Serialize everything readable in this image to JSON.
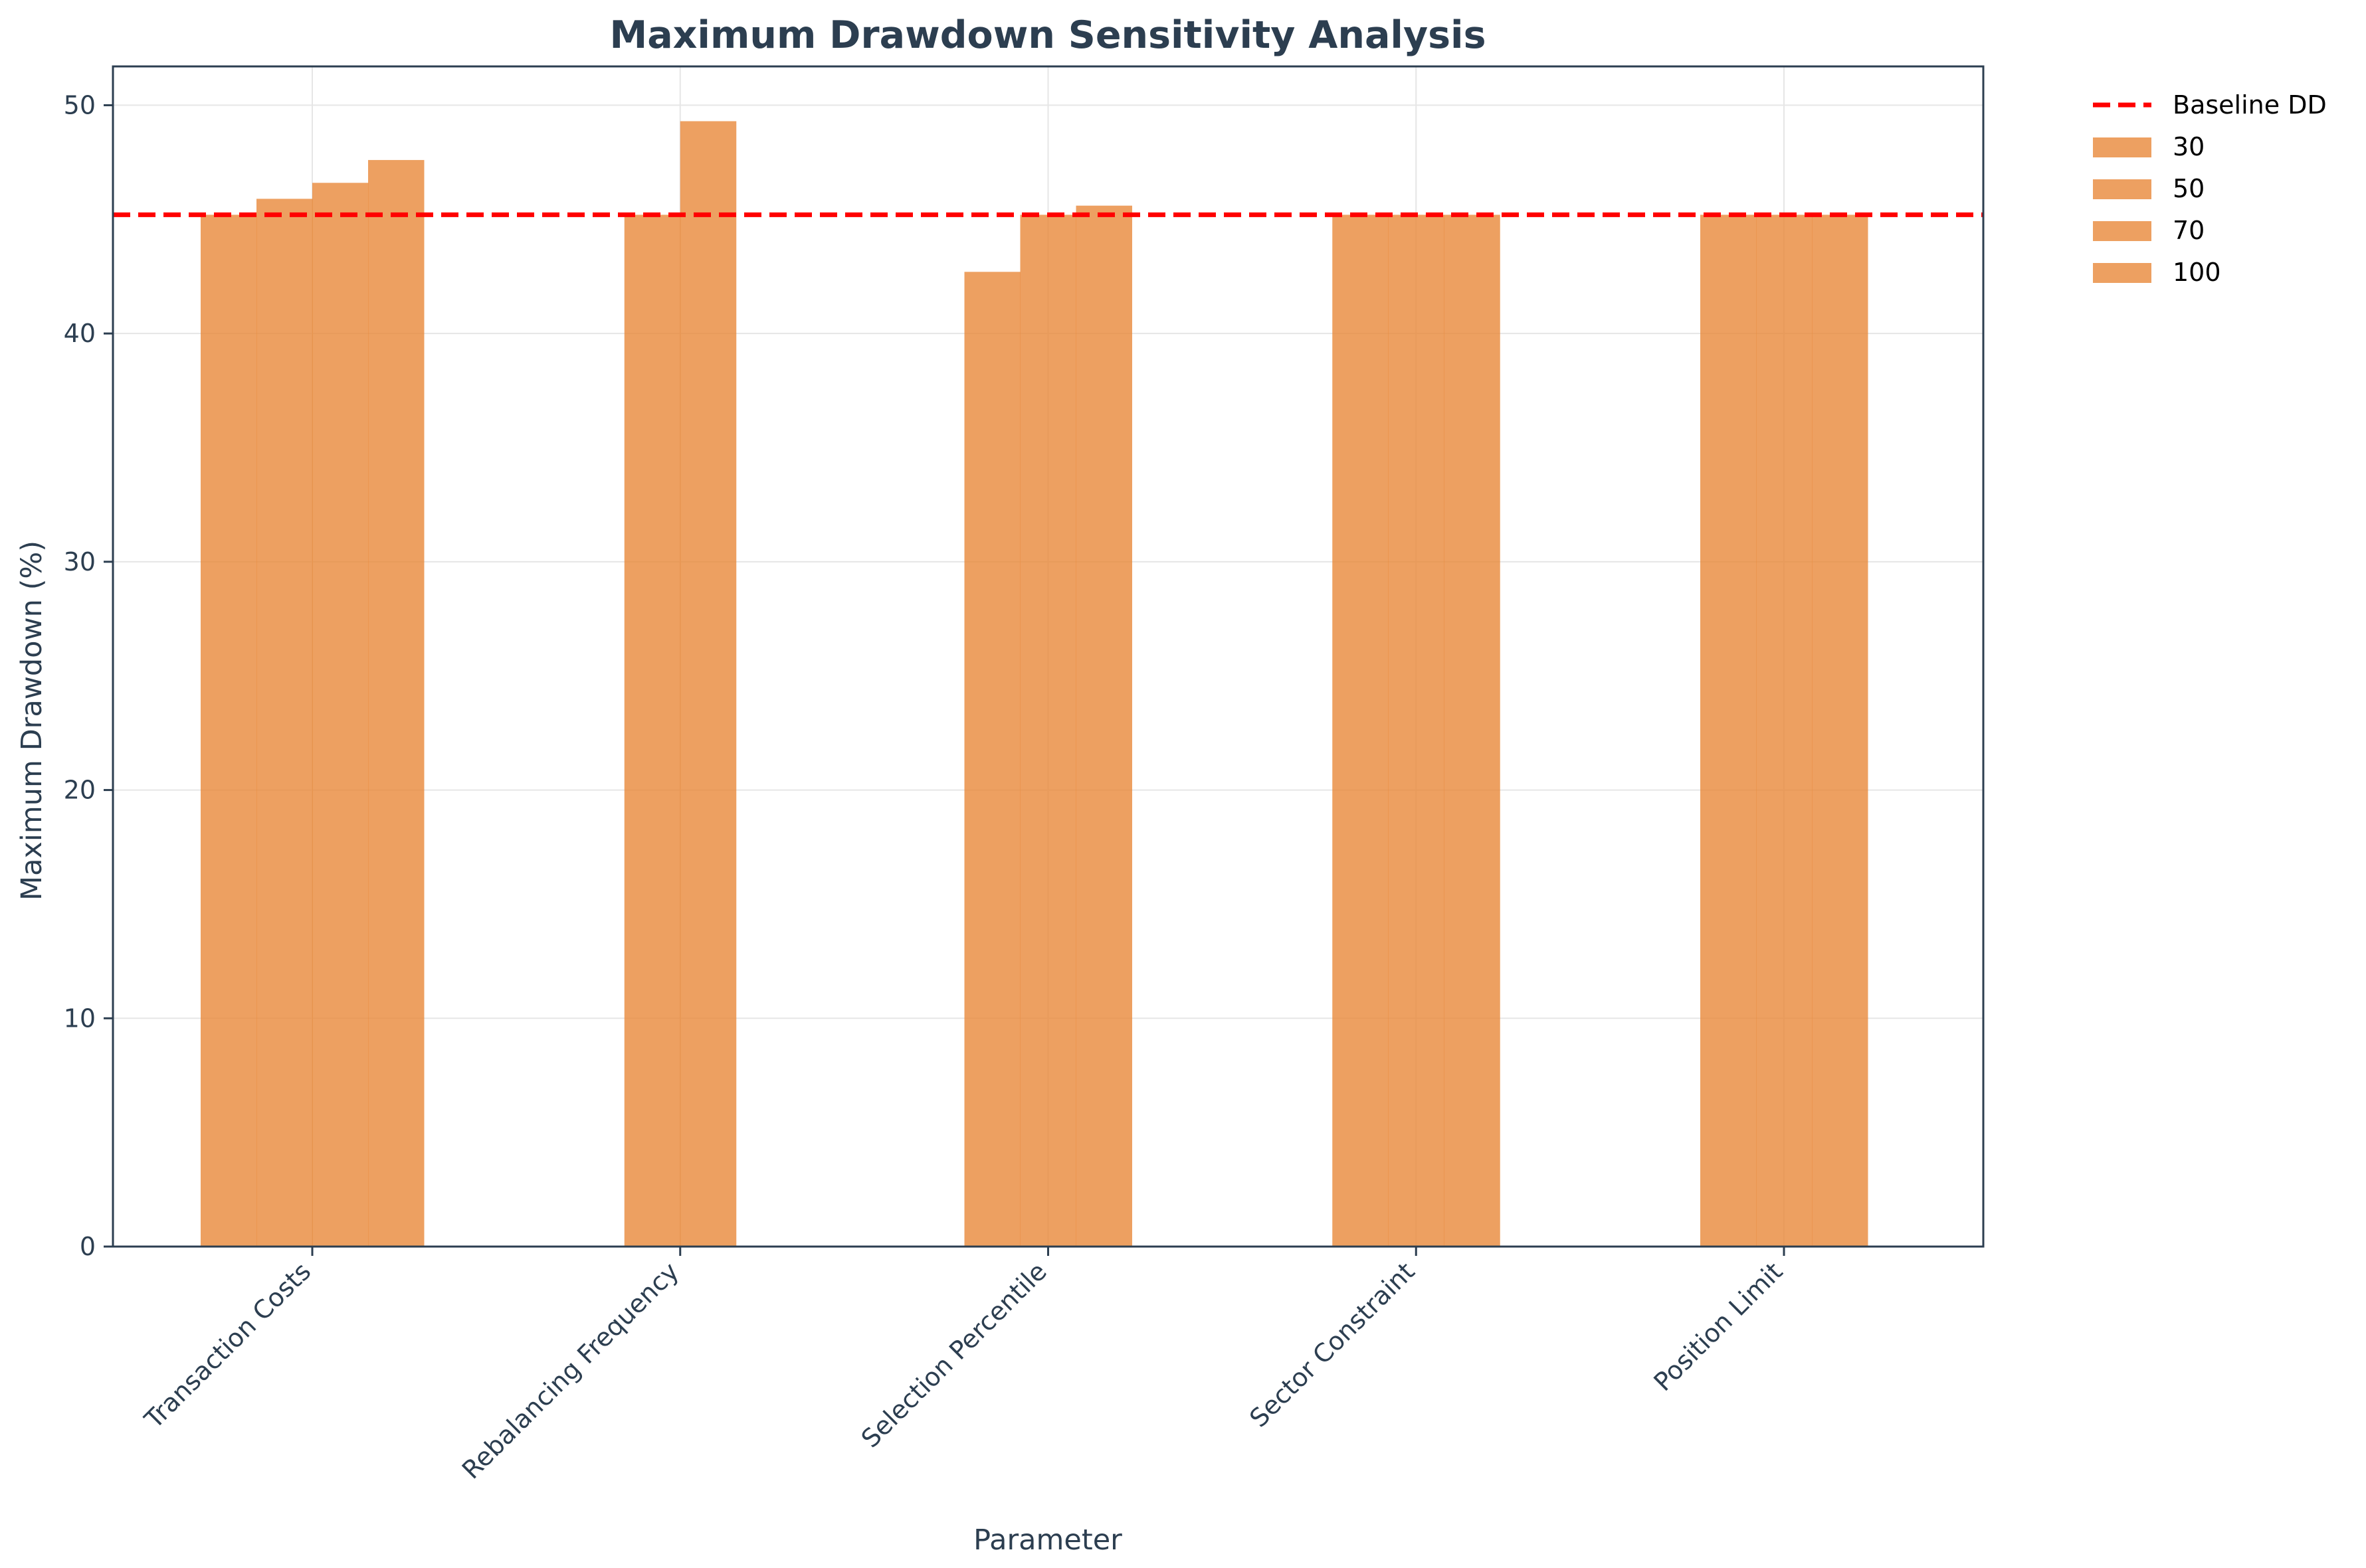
{
  "chart_data": {
    "type": "bar",
    "title": "Maximum Drawdown Sensitivity Analysis",
    "xlabel": "Parameter",
    "ylabel": "Maximum Drawdown (%)",
    "ylim": [
      0,
      51.7
    ],
    "yticks": [
      0,
      10,
      20,
      30,
      40,
      50
    ],
    "grid": true,
    "legend_position": "outside-top-right",
    "bar_color": "#e8883a",
    "baseline": {
      "name": "Baseline DD",
      "value": 45.2,
      "color": "#ff0000",
      "style": "dashed"
    },
    "categories": [
      "Transaction Costs",
      "Rebalancing Frequency",
      "Selection Percentile",
      "Sector Constraint",
      "Position Limit"
    ],
    "groups": [
      {
        "category": "Transaction Costs",
        "values": [
          45.2,
          45.9,
          46.6,
          47.6
        ]
      },
      {
        "category": "Rebalancing Frequency",
        "values": [
          45.2,
          49.3
        ]
      },
      {
        "category": "Selection Percentile",
        "values": [
          42.7,
          45.2,
          45.6
        ]
      },
      {
        "category": "Sector Constraint",
        "values": [
          45.2,
          45.2,
          45.2
        ]
      },
      {
        "category": "Position Limit",
        "values": [
          45.2,
          45.2,
          45.2
        ]
      }
    ],
    "legend_entries": [
      "Baseline DD",
      "30",
      "50",
      "70",
      "100"
    ]
  }
}
